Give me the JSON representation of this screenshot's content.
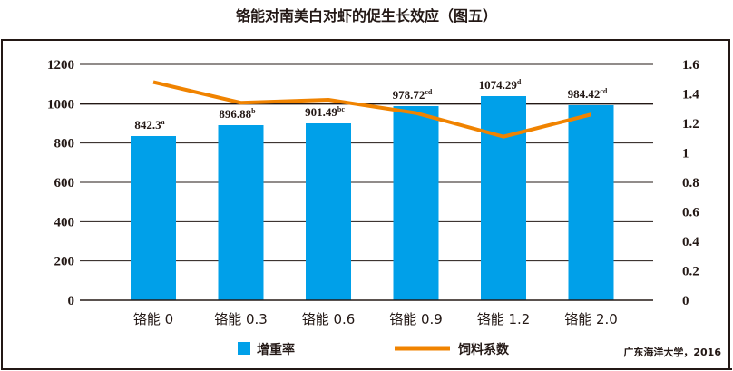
{
  "title": "铬能对南美白对虾的促生长效应（图五）",
  "source": "广东海洋大学，2016",
  "colors": {
    "bar": "#00A0E9",
    "line": "#F08300",
    "axis": "#231815"
  },
  "legend": [
    {
      "label": "增重率",
      "type": "bar",
      "color": "#00A0E9"
    },
    {
      "label": "饲料系数",
      "type": "line",
      "color": "#F08300"
    }
  ],
  "chart_data": {
    "type": "bar+line",
    "title": "铬能对南美白对虾的促生长效应（图五）",
    "categories": [
      "铬能 0",
      "铬能 0.3",
      "铬能 0.6",
      "铬能 0.9",
      "铬能 1.2",
      "铬能 2.0"
    ],
    "series": [
      {
        "name": "增重率",
        "type": "bar",
        "axis": "left",
        "values": [
          842.3,
          896.88,
          901.49,
          978.72,
          1074.29,
          984.42
        ],
        "labels": [
          "842.3",
          "896.88",
          "901.49",
          "978.72",
          "1074.29",
          "984.42"
        ],
        "significance": [
          "a",
          "b",
          "bc",
          "cd",
          "d",
          "cd"
        ]
      },
      {
        "name": "饲料系数",
        "type": "line",
        "axis": "right",
        "values": [
          1.48,
          1.34,
          1.36,
          1.27,
          1.11,
          1.26
        ]
      }
    ],
    "left_axis": {
      "ylim": [
        0,
        1200
      ],
      "ticks": [
        "0",
        "200",
        "400",
        "600",
        "800",
        "1000",
        "1200"
      ]
    },
    "right_axis": {
      "ylim": [
        0,
        1.6
      ],
      "ticks": [
        "0",
        "0.2",
        "0.4",
        "0.6",
        "0.8",
        "1",
        "1.2",
        "1.4",
        "1.6"
      ]
    },
    "grid": true,
    "legend_position": "bottom",
    "annotation": "广东海洋大学，2016"
  }
}
